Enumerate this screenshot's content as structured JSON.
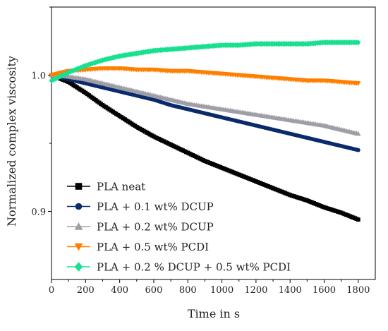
{
  "chart_data": {
    "type": "line",
    "title": "",
    "xlabel": "Time in s",
    "ylabel": "Normalized complex viscosity",
    "xlim": [
      0,
      1900
    ],
    "ylim": [
      0.85,
      1.05
    ],
    "x_ticks": [
      0,
      200,
      400,
      600,
      800,
      1000,
      1200,
      1400,
      1600,
      1800
    ],
    "y_ticks": [
      0.9,
      1.0
    ],
    "y_tick_labels": [
      "0.9",
      "1.0"
    ],
    "legend_position": "bottom-left",
    "x": [
      0,
      100,
      200,
      300,
      400,
      500,
      600,
      700,
      800,
      900,
      1000,
      1100,
      1200,
      1300,
      1400,
      1500,
      1600,
      1700,
      1800
    ],
    "series": [
      {
        "name": "PLA neat",
        "color": "#000000",
        "marker": "square",
        "values": [
          1.0,
          0.995,
          0.987,
          0.978,
          0.97,
          0.962,
          0.955,
          0.949,
          0.943,
          0.937,
          0.932,
          0.927,
          0.922,
          0.917,
          0.912,
          0.908,
          0.903,
          0.899,
          0.894
        ]
      },
      {
        "name": "PLA + 0.1 wt% DCUP",
        "color": "#0a2a6b",
        "marker": "circle",
        "values": [
          1.0,
          0.997,
          0.994,
          0.991,
          0.988,
          0.985,
          0.982,
          0.978,
          0.975,
          0.972,
          0.969,
          0.966,
          0.963,
          0.96,
          0.957,
          0.954,
          0.951,
          0.948,
          0.945
        ]
      },
      {
        "name": "PLA + 0.2 wt% DCUP",
        "color": "#9e9ea6",
        "marker": "triangle-up",
        "values": [
          1.0,
          0.999,
          0.997,
          0.994,
          0.991,
          0.988,
          0.985,
          0.982,
          0.979,
          0.977,
          0.975,
          0.973,
          0.971,
          0.969,
          0.967,
          0.965,
          0.963,
          0.96,
          0.957
        ]
      },
      {
        "name": "PLA + 0.5 wt% PCDI",
        "color": "#ff7f00",
        "marker": "triangle-down",
        "values": [
          1.0,
          1.003,
          1.004,
          1.005,
          1.005,
          1.004,
          1.004,
          1.003,
          1.003,
          1.002,
          1.001,
          1.0,
          0.999,
          0.998,
          0.997,
          0.996,
          0.996,
          0.995,
          0.994
        ]
      },
      {
        "name": "PLA + 0.2 % DCUP + 0.5 wt% PCDI",
        "color": "#19e090",
        "marker": "diamond",
        "values": [
          0.996,
          1.002,
          1.007,
          1.011,
          1.014,
          1.016,
          1.018,
          1.019,
          1.02,
          1.021,
          1.022,
          1.022,
          1.023,
          1.023,
          1.023,
          1.023,
          1.024,
          1.024,
          1.024
        ]
      }
    ]
  }
}
